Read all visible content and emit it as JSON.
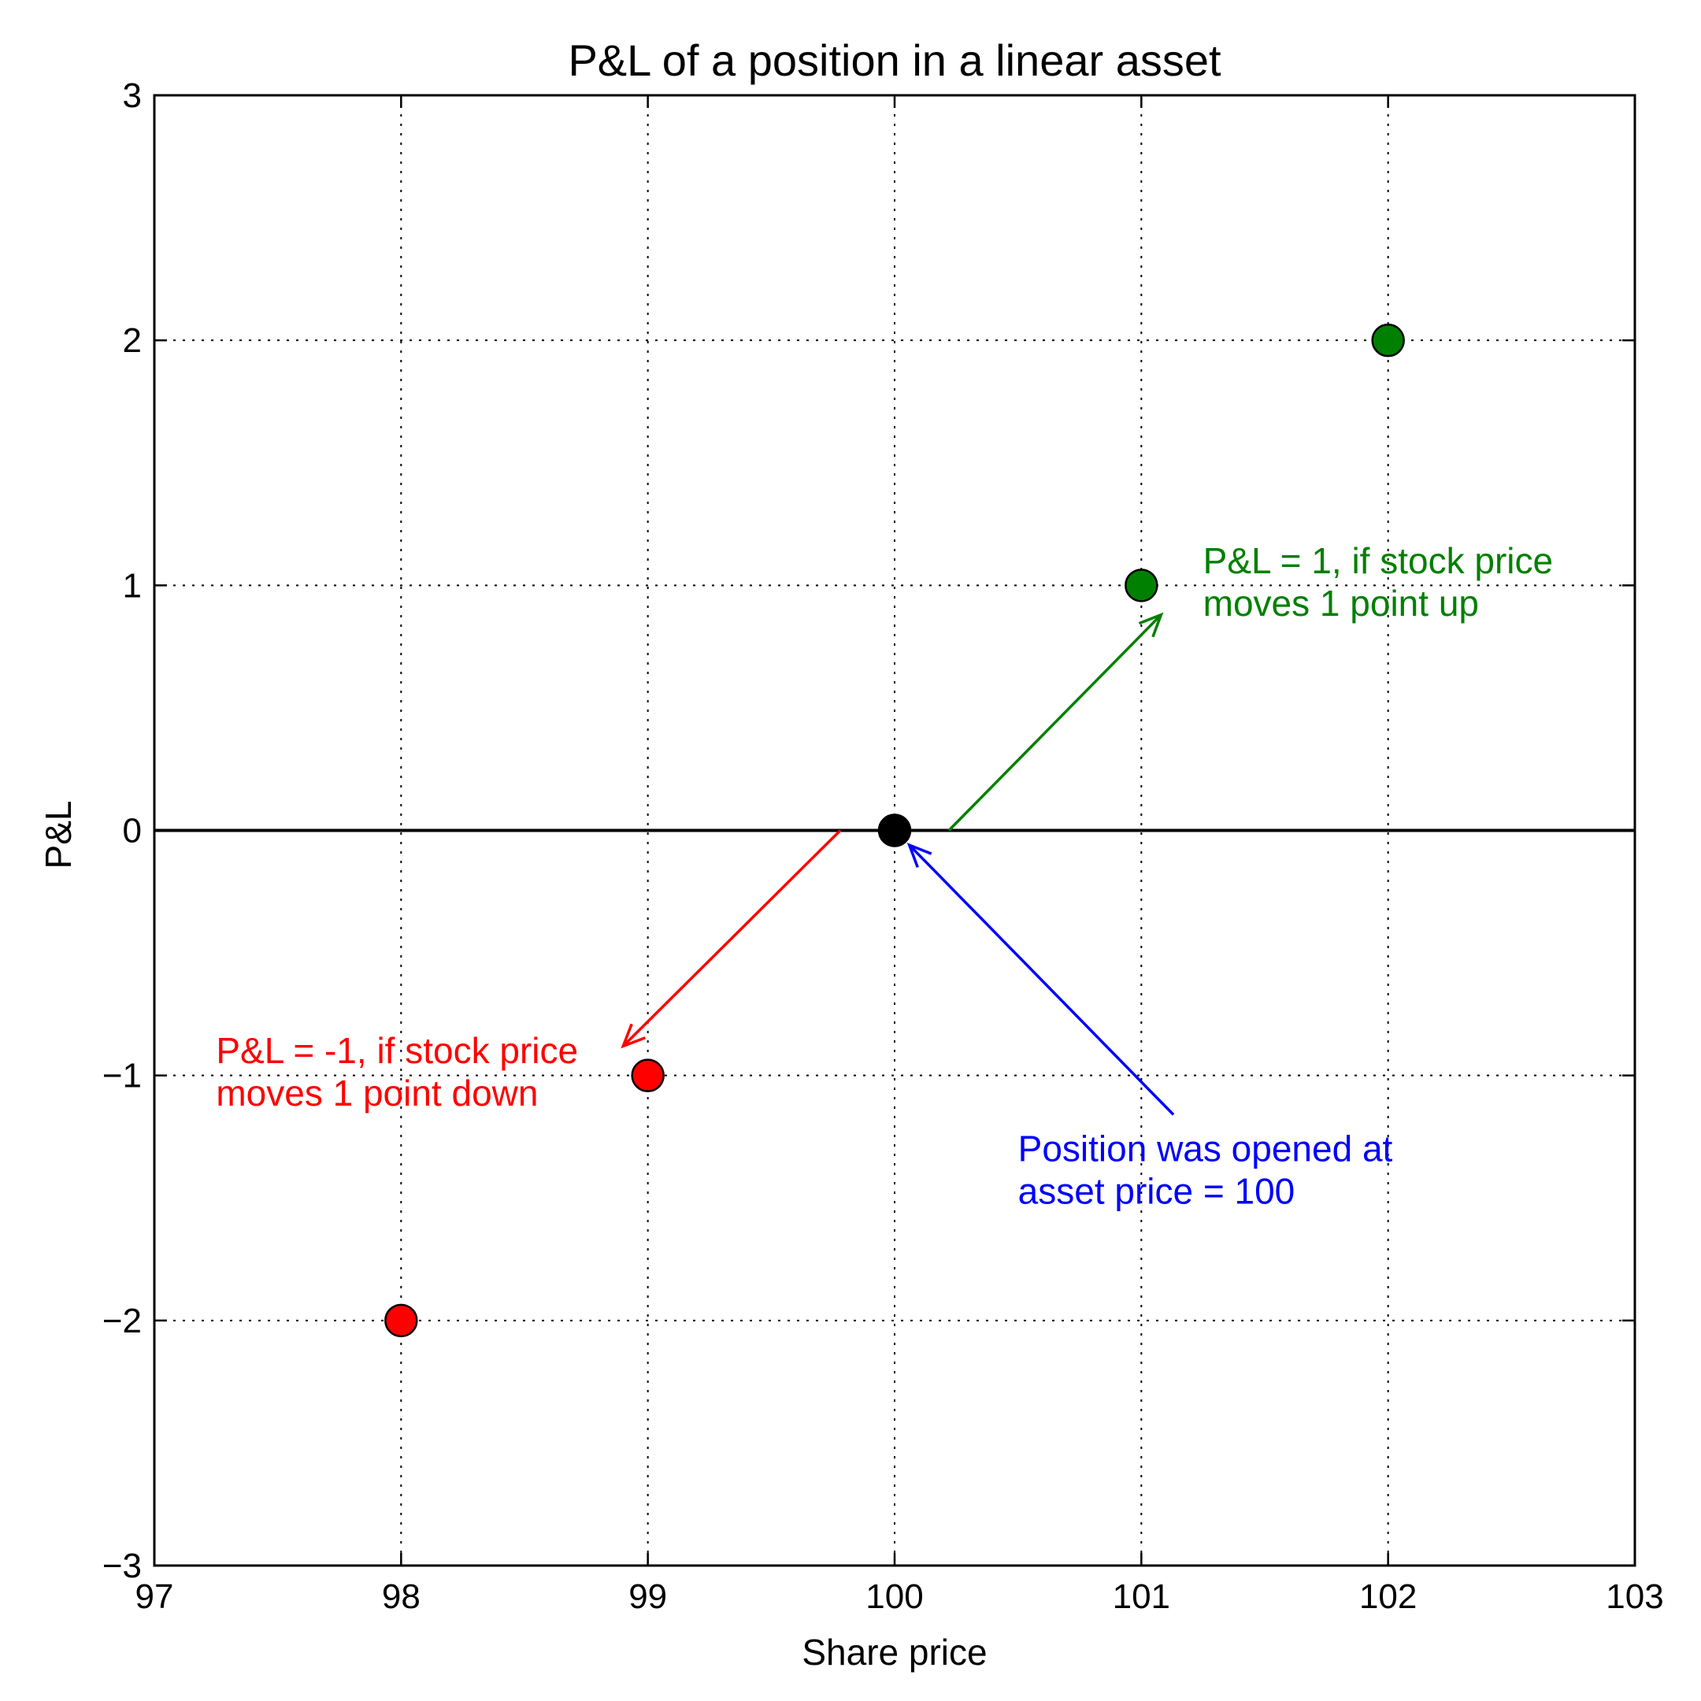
{
  "chart_data": {
    "type": "scatter",
    "title": "P&L of a position in a linear asset",
    "xlabel": "Share price",
    "ylabel": "P&L",
    "xlim": [
      97,
      103
    ],
    "ylim": [
      -3,
      3
    ],
    "x_ticks": [
      97,
      98,
      99,
      100,
      101,
      102,
      103
    ],
    "y_ticks": [
      -3,
      -2,
      -1,
      0,
      1,
      2,
      3
    ],
    "x_tick_labels": [
      "97",
      "98",
      "99",
      "100",
      "101",
      "102",
      "103"
    ],
    "y_tick_labels": [
      "−3",
      "−2",
      "−1",
      "0",
      "1",
      "2",
      "3"
    ],
    "grid": true,
    "grid_style": "dotted",
    "zero_line": true,
    "series": [
      {
        "color": "#ff0000",
        "points": [
          {
            "x": 98,
            "y": -2
          },
          {
            "x": 99,
            "y": -1
          }
        ]
      },
      {
        "color": "#000000",
        "points": [
          {
            "x": 100,
            "y": 0
          }
        ]
      },
      {
        "color": "#008000",
        "points": [
          {
            "x": 101,
            "y": 1
          },
          {
            "x": 102,
            "y": 2
          }
        ]
      }
    ],
    "annotations": [
      {
        "lines": [
          "P&L = 1, if stock price",
          "moves 1 point up"
        ],
        "color": "#008000",
        "text_at": [
          101.25,
          1.05
        ],
        "arrow_from": [
          100.22,
          0.0
        ],
        "arrow_to": [
          101.08,
          0.88
        ]
      },
      {
        "lines": [
          "P&L = -1, if stock price",
          "moves 1 point down"
        ],
        "color": "#ff0000",
        "text_at": [
          97.25,
          -0.95
        ],
        "arrow_from": [
          99.78,
          0.0
        ],
        "arrow_to": [
          98.9,
          -0.88
        ]
      },
      {
        "lines": [
          "Position was opened at",
          "asset price = 100"
        ],
        "color": "#0000ff",
        "text_at": [
          100.5,
          -1.35
        ],
        "arrow_from": [
          101.13,
          -1.16
        ],
        "arrow_to": [
          100.06,
          -0.06
        ]
      }
    ]
  }
}
